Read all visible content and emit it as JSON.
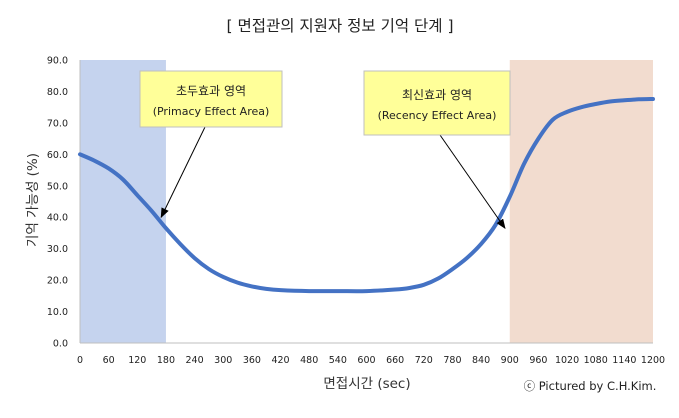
{
  "chart_data": {
    "type": "line",
    "title": "[ 면접관의 지원자 정보 기억 단계 ]",
    "xlabel": "면접시간 (sec)",
    "ylabel": "기억 가능성 (%)",
    "credit": "ⓒ Pictured by C.H.Kim.",
    "xlim": [
      0,
      1200
    ],
    "ylim": [
      0,
      90
    ],
    "x_ticks": [
      0,
      60,
      120,
      180,
      240,
      300,
      360,
      420,
      480,
      540,
      600,
      660,
      720,
      780,
      840,
      900,
      960,
      1020,
      1080,
      1140,
      1200
    ],
    "x_tick_labels": [
      "0",
      "60",
      "120",
      "180",
      "240",
      "300",
      "360",
      "420",
      "480",
      "540",
      "600",
      "660",
      "720",
      "780",
      "840",
      "900",
      "960",
      "1020",
      "1080",
      "1140",
      "1200"
    ],
    "y_ticks": [
      0,
      10,
      20,
      30,
      40,
      50,
      60,
      70,
      80,
      90
    ],
    "y_tick_labels": [
      "0.0",
      "10.0",
      "20.0",
      "30.0",
      "40.0",
      "50.0",
      "60.0",
      "70.0",
      "80.0",
      "90.0"
    ],
    "grid": false,
    "line_color": "#4472C4",
    "series": [
      {
        "x": [
          0,
          30,
          60,
          90,
          120,
          150,
          180,
          210,
          240,
          270,
          300,
          330,
          360,
          390,
          420,
          480,
          540,
          600,
          660,
          690,
          720,
          750,
          780,
          810,
          840,
          870,
          900,
          930,
          960,
          990,
          1020,
          1050,
          1080,
          1110,
          1140,
          1170,
          1200
        ],
        "values": [
          60,
          58,
          55.5,
          52,
          47,
          42,
          36.5,
          31.5,
          27,
          23.5,
          21,
          19.2,
          18,
          17.2,
          16.8,
          16.5,
          16.5,
          16.5,
          17,
          17.5,
          18.5,
          20.5,
          23.5,
          27,
          31.5,
          37.5,
          46.5,
          57,
          65,
          71,
          73.5,
          75,
          76,
          76.8,
          77.2,
          77.5,
          77.6
        ]
      }
    ],
    "regions": [
      {
        "from": 0,
        "to": 180,
        "color": "#C5D3EE"
      },
      {
        "from": 900,
        "to": 1200,
        "color": "#F2DCCF"
      }
    ],
    "annotations": [
      {
        "line1": "초두효과 영역",
        "line2": "(Primacy Effect Area)",
        "arrow_to": [
          170,
          40
        ]
      },
      {
        "line1": "최신효과 영역",
        "line2": "(Recency Effect Area)",
        "arrow_to": [
          890,
          36.5
        ]
      }
    ]
  }
}
